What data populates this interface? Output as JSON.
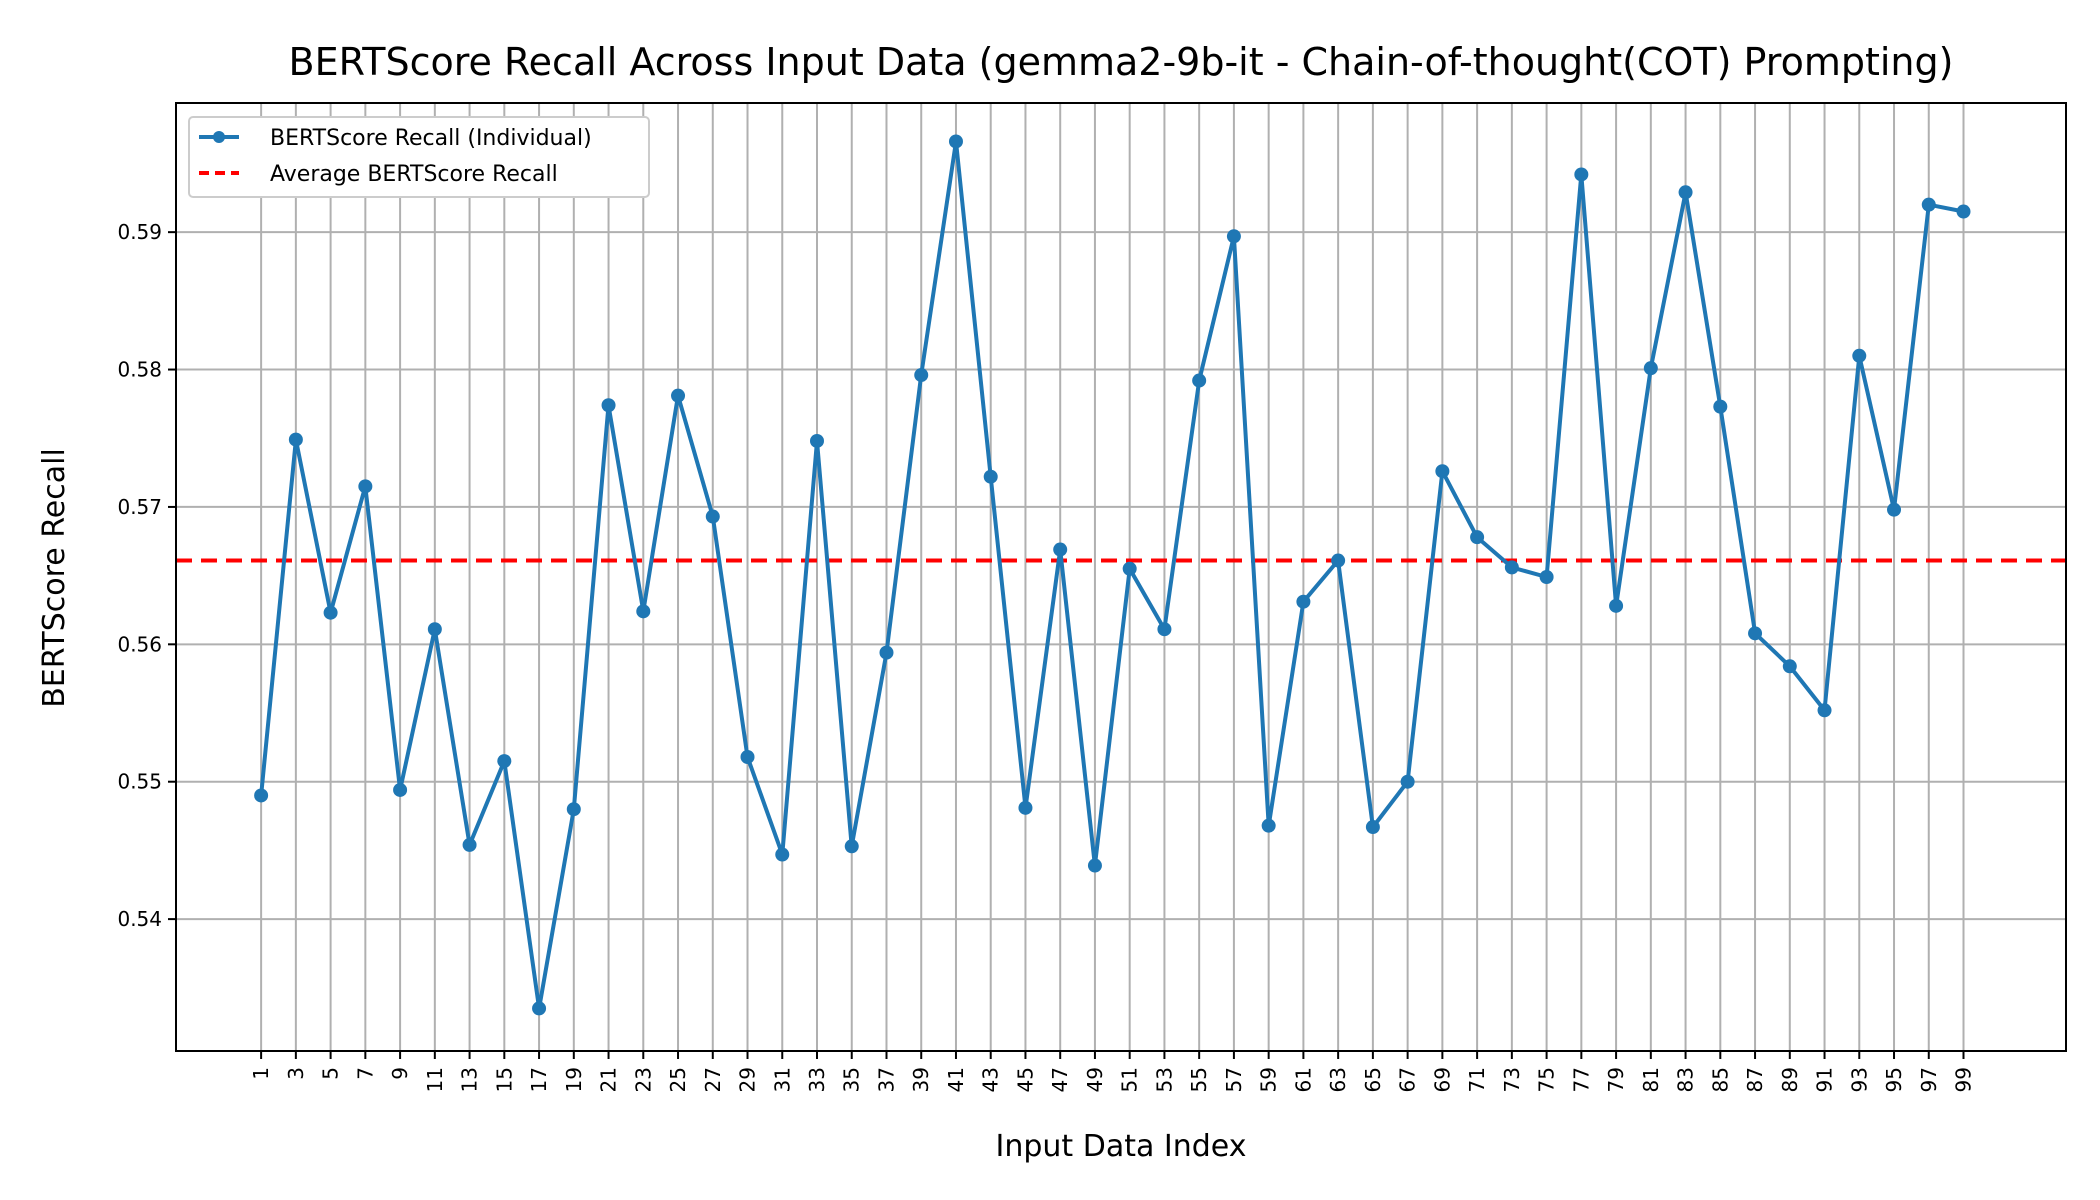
{
  "chart_data": {
    "type": "line",
    "title": "BERTScore Recall Across Input Data (gemma2-9b-it - Chain-of-thought(COT) Prompting)",
    "xlabel": "Input Data Index",
    "ylabel": "BERTScore Recall",
    "x": [
      1,
      3,
      5,
      7,
      9,
      11,
      13,
      15,
      17,
      19,
      21,
      23,
      25,
      27,
      29,
      31,
      33,
      35,
      37,
      39,
      41,
      43,
      45,
      47,
      49,
      51,
      53,
      55,
      57,
      59,
      61,
      63,
      65,
      67,
      69,
      71,
      73,
      75,
      77,
      79,
      81,
      83,
      85,
      87,
      89,
      91,
      93,
      95,
      97,
      99
    ],
    "x_tick_labels": [
      "1",
      "3",
      "5",
      "7",
      "9",
      "11",
      "13",
      "15",
      "17",
      "19",
      "21",
      "23",
      "25",
      "27",
      "29",
      "31",
      "33",
      "35",
      "37",
      "39",
      "41",
      "43",
      "45",
      "47",
      "49",
      "51",
      "53",
      "55",
      "57",
      "59",
      "61",
      "63",
      "65",
      "67",
      "69",
      "71",
      "73",
      "75",
      "77",
      "79",
      "81",
      "83",
      "85",
      "87",
      "89",
      "91",
      "93",
      "95",
      "97",
      "99"
    ],
    "y_ticks": [
      0.54,
      0.55,
      0.56,
      0.57,
      0.58,
      0.59
    ],
    "y_tick_labels": [
      "0.54",
      "0.55",
      "0.56",
      "0.57",
      "0.58",
      "0.59"
    ],
    "xlim": [
      -3.9,
      104.9
    ],
    "ylim": [
      0.5304,
      0.5994
    ],
    "grid": true,
    "legend_position": "upper left",
    "series": [
      {
        "name": "BERTScore Recall (Individual)",
        "color": "#1f77b4",
        "style": "solid-with-markers",
        "values": [
          0.549,
          0.5749,
          0.5623,
          0.5715,
          0.5494,
          0.5611,
          0.5454,
          0.5515,
          0.5335,
          0.548,
          0.5774,
          0.5624,
          0.5781,
          0.5693,
          0.5518,
          0.5447,
          0.5748,
          0.5453,
          0.5594,
          0.5796,
          0.5966,
          0.5722,
          0.5481,
          0.5669,
          0.5439,
          0.5655,
          0.5611,
          0.5792,
          0.5897,
          0.5468,
          0.5631,
          0.5661,
          0.5467,
          0.55,
          0.5726,
          0.5678,
          0.5656,
          0.5649,
          0.5942,
          0.5628,
          0.5801,
          0.5929,
          0.5773,
          0.5608,
          0.5584,
          0.5552,
          0.581,
          0.5698,
          0.592,
          0.5915
        ]
      },
      {
        "name": "Average BERTScore Recall",
        "color": "#ff0000",
        "style": "dashed",
        "value": 0.5661
      }
    ]
  }
}
